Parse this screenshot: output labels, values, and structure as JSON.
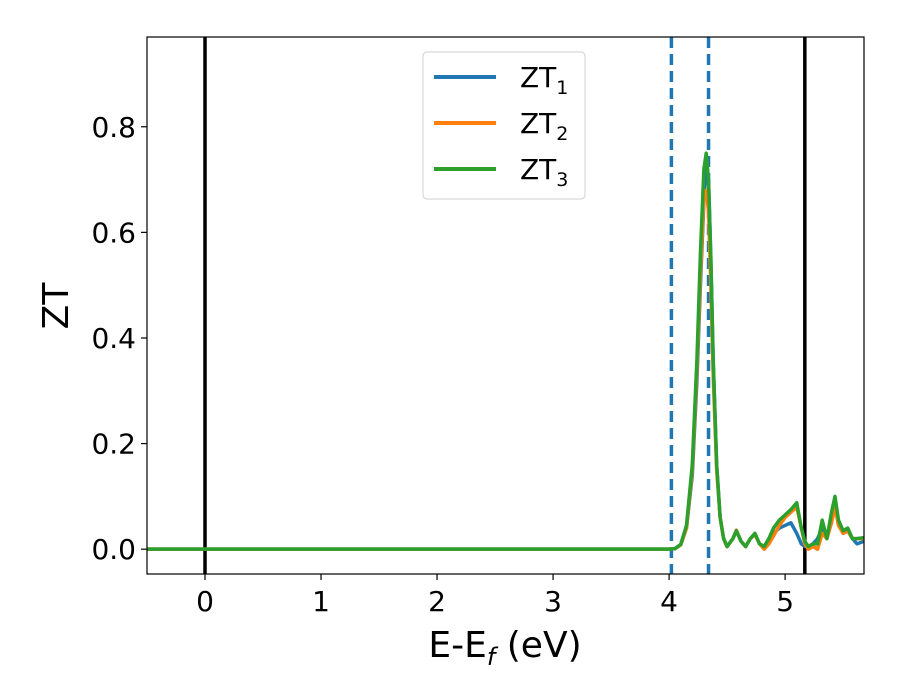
{
  "chart_data": {
    "type": "line",
    "xlabel_main": "E-E",
    "xlabel_sub": "f",
    "xlabel_units": " (eV)",
    "ylabel": "ZT",
    "xlim": [
      -0.5,
      5.68
    ],
    "ylim": [
      -0.047,
      0.97
    ],
    "xticks": [
      0,
      1,
      2,
      3,
      4,
      5
    ],
    "xtick_labels": [
      "0",
      "1",
      "2",
      "3",
      "4",
      "5"
    ],
    "yticks": [
      0.0,
      0.2,
      0.4,
      0.6,
      0.8
    ],
    "ytick_labels": [
      "0.0",
      "0.2",
      "0.4",
      "0.6",
      "0.8"
    ],
    "grid": false,
    "legend_position": "top-center",
    "vlines_solid": [
      0.0,
      5.17
    ],
    "vlines_dashed": [
      4.02,
      4.34
    ],
    "vline_solid_color": "#000000",
    "vline_dashed_color": "#1f77b4",
    "series": [
      {
        "name": "ZT",
        "sub": "1",
        "color": "#1f77b4",
        "x": [
          -0.5,
          4.0,
          4.05,
          4.1,
          4.15,
          4.2,
          4.24,
          4.27,
          4.3,
          4.32,
          4.34,
          4.36,
          4.38,
          4.41,
          4.44,
          4.47,
          4.5,
          4.55,
          4.58,
          4.62,
          4.66,
          4.7,
          4.74,
          4.78,
          4.82,
          4.86,
          4.9,
          4.95,
          5.0,
          5.05,
          5.1,
          5.14,
          5.17,
          5.2,
          5.24,
          5.28,
          5.32,
          5.36,
          5.4,
          5.43,
          5.46,
          5.5,
          5.54,
          5.58,
          5.62,
          5.68
        ],
        "y": [
          0.0,
          0.0,
          0.001,
          0.008,
          0.04,
          0.14,
          0.32,
          0.5,
          0.66,
          0.72,
          0.7,
          0.55,
          0.36,
          0.16,
          0.06,
          0.02,
          0.005,
          0.02,
          0.035,
          0.015,
          0.005,
          0.02,
          0.028,
          0.01,
          0.005,
          0.02,
          0.03,
          0.04,
          0.045,
          0.05,
          0.03,
          0.01,
          0.005,
          0.005,
          0.01,
          0.02,
          0.04,
          0.02,
          0.06,
          0.09,
          0.05,
          0.03,
          0.035,
          0.02,
          0.01,
          0.015
        ]
      },
      {
        "name": "ZT",
        "sub": "2",
        "color": "#ff7f0e",
        "x": [
          -0.5,
          4.0,
          4.05,
          4.1,
          4.15,
          4.2,
          4.24,
          4.27,
          4.3,
          4.32,
          4.34,
          4.36,
          4.38,
          4.41,
          4.44,
          4.47,
          4.5,
          4.55,
          4.58,
          4.62,
          4.66,
          4.7,
          4.74,
          4.78,
          4.82,
          4.86,
          4.9,
          4.95,
          5.0,
          5.05,
          5.1,
          5.14,
          5.17,
          5.2,
          5.24,
          5.28,
          5.32,
          5.36,
          5.4,
          5.43,
          5.46,
          5.5,
          5.54,
          5.58,
          5.62,
          5.68
        ],
        "y": [
          0.0,
          0.0,
          0.001,
          0.008,
          0.04,
          0.15,
          0.34,
          0.52,
          0.67,
          0.68,
          0.64,
          0.5,
          0.33,
          0.15,
          0.06,
          0.02,
          0.005,
          0.02,
          0.036,
          0.015,
          0.005,
          0.02,
          0.028,
          0.01,
          0.0,
          0.01,
          0.025,
          0.045,
          0.06,
          0.07,
          0.08,
          0.04,
          0.01,
          0.0,
          0.005,
          0.0,
          0.03,
          0.02,
          0.05,
          0.08,
          0.045,
          0.03,
          0.035,
          0.02,
          0.02,
          0.02
        ]
      },
      {
        "name": "ZT",
        "sub": "3",
        "color": "#2ca02c",
        "x": [
          -0.5,
          4.0,
          4.05,
          4.1,
          4.15,
          4.2,
          4.24,
          4.27,
          4.3,
          4.32,
          4.34,
          4.36,
          4.38,
          4.41,
          4.44,
          4.47,
          4.5,
          4.55,
          4.58,
          4.62,
          4.66,
          4.7,
          4.74,
          4.78,
          4.82,
          4.86,
          4.9,
          4.95,
          5.0,
          5.05,
          5.1,
          5.14,
          5.17,
          5.2,
          5.24,
          5.28,
          5.32,
          5.36,
          5.4,
          5.43,
          5.46,
          5.5,
          5.54,
          5.58,
          5.62,
          5.68
        ],
        "y": [
          0.0,
          0.0,
          0.001,
          0.009,
          0.045,
          0.16,
          0.36,
          0.56,
          0.72,
          0.75,
          0.7,
          0.55,
          0.36,
          0.16,
          0.06,
          0.02,
          0.005,
          0.02,
          0.035,
          0.015,
          0.005,
          0.02,
          0.03,
          0.01,
          0.005,
          0.02,
          0.04,
          0.055,
          0.065,
          0.075,
          0.088,
          0.04,
          0.015,
          0.005,
          0.01,
          0.01,
          0.055,
          0.02,
          0.07,
          0.1,
          0.055,
          0.035,
          0.04,
          0.02,
          0.02,
          0.022
        ]
      }
    ]
  }
}
